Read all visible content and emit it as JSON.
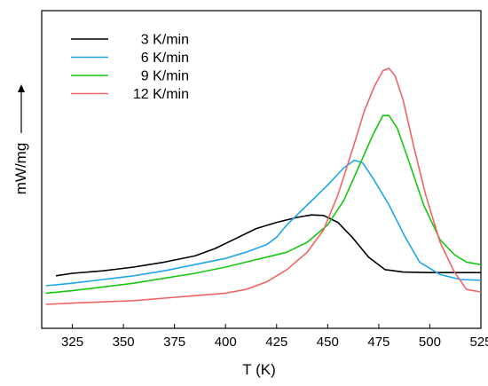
{
  "chart_data": {
    "type": "line",
    "xlabel": "T (K)",
    "ylabel": "mW/mg",
    "ylabel_arrow": true,
    "xlim": [
      310,
      525
    ],
    "ylim": [
      0,
      1
    ],
    "x_ticks": [
      325,
      350,
      375,
      400,
      425,
      450,
      475,
      500,
      525
    ],
    "y_ticks_shown": false,
    "grid": false,
    "legend_position": "top-left",
    "series": [
      {
        "name": "3 K/min",
        "color": "#000000",
        "points": [
          [
            317,
            0.115
          ],
          [
            325,
            0.125
          ],
          [
            340,
            0.135
          ],
          [
            355,
            0.15
          ],
          [
            370,
            0.17
          ],
          [
            385,
            0.195
          ],
          [
            395,
            0.225
          ],
          [
            405,
            0.265
          ],
          [
            415,
            0.305
          ],
          [
            425,
            0.33
          ],
          [
            435,
            0.35
          ],
          [
            442,
            0.36
          ],
          [
            448,
            0.358
          ],
          [
            455,
            0.33
          ],
          [
            462,
            0.27
          ],
          [
            470,
            0.19
          ],
          [
            478,
            0.14
          ],
          [
            487,
            0.13
          ],
          [
            500,
            0.128
          ],
          [
            525,
            0.128
          ]
        ]
      },
      {
        "name": "6 K/min",
        "color": "#1fa5ee",
        "points": [
          [
            312,
            0.075
          ],
          [
            325,
            0.085
          ],
          [
            340,
            0.1
          ],
          [
            355,
            0.115
          ],
          [
            370,
            0.135
          ],
          [
            385,
            0.16
          ],
          [
            400,
            0.185
          ],
          [
            410,
            0.21
          ],
          [
            420,
            0.24
          ],
          [
            425,
            0.27
          ],
          [
            430,
            0.32
          ],
          [
            440,
            0.4
          ],
          [
            450,
            0.48
          ],
          [
            458,
            0.55
          ],
          [
            463,
            0.58
          ],
          [
            467,
            0.57
          ],
          [
            472,
            0.51
          ],
          [
            480,
            0.4
          ],
          [
            488,
            0.27
          ],
          [
            495,
            0.17
          ],
          [
            505,
            0.12
          ],
          [
            515,
            0.1
          ],
          [
            525,
            0.097
          ]
        ]
      },
      {
        "name": "9 K/min",
        "color": "#16c80f",
        "points": [
          [
            312,
            0.045
          ],
          [
            325,
            0.055
          ],
          [
            340,
            0.07
          ],
          [
            355,
            0.085
          ],
          [
            370,
            0.105
          ],
          [
            385,
            0.125
          ],
          [
            400,
            0.15
          ],
          [
            410,
            0.17
          ],
          [
            420,
            0.19
          ],
          [
            430,
            0.21
          ],
          [
            440,
            0.25
          ],
          [
            450,
            0.32
          ],
          [
            458,
            0.42
          ],
          [
            465,
            0.55
          ],
          [
            472,
            0.68
          ],
          [
            477,
            0.76
          ],
          [
            480,
            0.76
          ],
          [
            484,
            0.71
          ],
          [
            490,
            0.57
          ],
          [
            497,
            0.4
          ],
          [
            505,
            0.26
          ],
          [
            512,
            0.2
          ],
          [
            518,
            0.17
          ],
          [
            525,
            0.16
          ]
        ]
      },
      {
        "name": "12 K/min",
        "color": "#f06464",
        "points": [
          [
            312,
            0.0
          ],
          [
            325,
            0.005
          ],
          [
            340,
            0.01
          ],
          [
            355,
            0.015
          ],
          [
            370,
            0.025
          ],
          [
            385,
            0.035
          ],
          [
            400,
            0.045
          ],
          [
            410,
            0.06
          ],
          [
            420,
            0.09
          ],
          [
            430,
            0.14
          ],
          [
            440,
            0.21
          ],
          [
            448,
            0.3
          ],
          [
            455,
            0.44
          ],
          [
            462,
            0.62
          ],
          [
            468,
            0.78
          ],
          [
            473,
            0.88
          ],
          [
            477,
            0.94
          ],
          [
            480,
            0.95
          ],
          [
            483,
            0.92
          ],
          [
            487,
            0.82
          ],
          [
            492,
            0.64
          ],
          [
            498,
            0.44
          ],
          [
            505,
            0.25
          ],
          [
            512,
            0.13
          ],
          [
            518,
            0.06
          ],
          [
            525,
            0.05
          ]
        ]
      }
    ]
  }
}
